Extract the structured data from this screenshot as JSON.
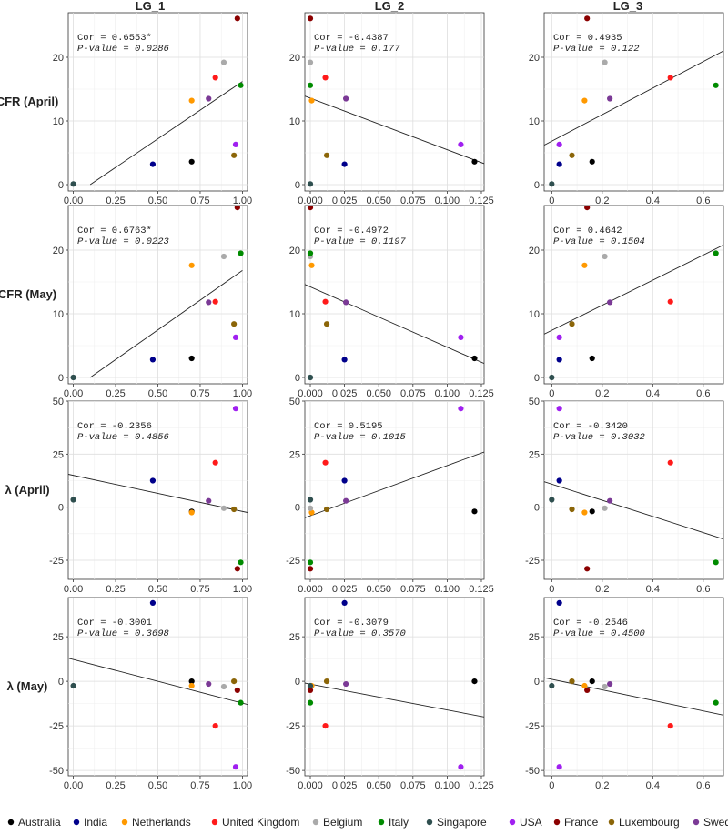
{
  "countries": [
    {
      "name": "Australia",
      "color": "#000000"
    },
    {
      "name": "India",
      "color": "#00008B"
    },
    {
      "name": "Netherlands",
      "color": "#FF9900"
    },
    {
      "name": "United Kingdom",
      "color": "#FF1A1A"
    },
    {
      "name": "Belgium",
      "color": "#AAAAAA"
    },
    {
      "name": "Italy",
      "color": "#008B00"
    },
    {
      "name": "Singapore",
      "color": "#2F4F4F"
    },
    {
      "name": "USA",
      "color": "#A020F0"
    },
    {
      "name": "France",
      "color": "#8B0000"
    },
    {
      "name": "Luxembourg",
      "color": "#8B6508"
    },
    {
      "name": "Sweden",
      "color": "#7B3A96"
    }
  ],
  "chart_data": {
    "type": "scatter",
    "columns": [
      "LG_1",
      "LG_2",
      "LG_3"
    ],
    "rows": [
      {
        "label": "CFR (April)",
        "ylim": [
          -1,
          27
        ],
        "yticks": [
          0,
          10,
          20
        ]
      },
      {
        "label": "CFR (May)",
        "ylim": [
          -1,
          27
        ],
        "yticks": [
          0,
          10,
          20
        ]
      },
      {
        "label": "λ (April)",
        "ylim": [
          -34,
          50
        ],
        "yticks": [
          -25,
          0,
          25,
          50
        ]
      },
      {
        "label": "λ (May)",
        "ylim": [
          -53,
          47
        ],
        "yticks": [
          -50,
          -25,
          0,
          25
        ]
      }
    ],
    "x_axes": [
      {
        "xlim": [
          -0.03,
          1.03
        ],
        "ticks": [
          0,
          0.25,
          0.5,
          0.75,
          1
        ],
        "tick_labels": [
          "0.00",
          "0.25",
          "0.50",
          "0.75",
          "1.00"
        ]
      },
      {
        "xlim": [
          -0.004,
          0.127
        ],
        "ticks": [
          0,
          0.025,
          0.05,
          0.075,
          0.1,
          0.125
        ],
        "tick_labels": [
          "0.000",
          "0.025",
          "0.050",
          "0.075",
          "0.100",
          "0.125"
        ]
      },
      {
        "xlim": [
          -0.03,
          0.68
        ],
        "ticks": [
          0,
          0.2,
          0.4,
          0.6
        ],
        "tick_labels": [
          "0",
          "0.2",
          "0.4",
          "0.6"
        ]
      }
    ],
    "x_values": [
      [
        0.7,
        0.47,
        0.7,
        0.84,
        0.89,
        0.99,
        0.0,
        0.96,
        0.97,
        0.95,
        0.8
      ],
      [
        0.12,
        0.025,
        0.001,
        0.011,
        0.0,
        0.0,
        0.0,
        0.11,
        0.0,
        0.012,
        0.026
      ],
      [
        0.16,
        0.03,
        0.13,
        0.47,
        0.21,
        0.65,
        0.0,
        0.03,
        0.14,
        0.08,
        0.23
      ]
    ],
    "y_values": [
      [
        3.6,
        3.2,
        13.2,
        16.8,
        19.2,
        15.6,
        0.1,
        6.3,
        26.1,
        4.6,
        13.5
      ],
      [
        3.0,
        2.8,
        17.6,
        11.9,
        19.0,
        19.5,
        0.0,
        6.3,
        26.7,
        8.4,
        11.8
      ],
      [
        -2,
        12.5,
        -2.5,
        21,
        -0.5,
        -26,
        3.5,
        46.5,
        -29,
        -1,
        3
      ],
      [
        0,
        44,
        -2.5,
        -25,
        -3,
        -12,
        -2.5,
        -48,
        -5,
        0,
        -1.5
      ]
    ],
    "panels": [
      {
        "row": 0,
        "col": 0,
        "cor": "Cor = 0.6553*",
        "pvalue": "P-value = 0.0286",
        "fit": [
          [
            0.1,
            0
          ],
          [
            1.0,
            16.2
          ]
        ]
      },
      {
        "row": 0,
        "col": 1,
        "cor": "Cor = -0.4387",
        "pvalue": "P-value = 0.177",
        "fit": [
          [
            -0.004,
            13.9
          ],
          [
            0.127,
            3.3
          ]
        ]
      },
      {
        "row": 0,
        "col": 2,
        "cor": "Cor = 0.4935",
        "pvalue": "P-value = 0.122",
        "fit": [
          [
            -0.03,
            6.2
          ],
          [
            0.68,
            21.0
          ]
        ]
      },
      {
        "row": 1,
        "col": 0,
        "cor": "Cor = 0.6763*",
        "pvalue": "P-value = 0.0223",
        "fit": [
          [
            0.1,
            0
          ],
          [
            1.0,
            16.8
          ]
        ]
      },
      {
        "row": 1,
        "col": 1,
        "cor": "Cor = -0.4972",
        "pvalue": "P-value = 0.1197",
        "fit": [
          [
            -0.004,
            14.6
          ],
          [
            0.127,
            2.2
          ]
        ]
      },
      {
        "row": 1,
        "col": 2,
        "cor": "Cor = 0.4642",
        "pvalue": "P-value = 0.1504",
        "fit": [
          [
            -0.03,
            6.8
          ],
          [
            0.68,
            20.8
          ]
        ]
      },
      {
        "row": 2,
        "col": 0,
        "cor": "Cor = -0.2356",
        "pvalue": "P-value = 0.4856",
        "fit": [
          [
            -0.03,
            15.5
          ],
          [
            1.03,
            -2.5
          ]
        ]
      },
      {
        "row": 2,
        "col": 1,
        "cor": "Cor = 0.5195",
        "pvalue": "P-value = 0.1015",
        "fit": [
          [
            -0.004,
            -5
          ],
          [
            0.127,
            26
          ]
        ]
      },
      {
        "row": 2,
        "col": 2,
        "cor": "Cor = -0.3420",
        "pvalue": "P-value = 0.3032",
        "fit": [
          [
            -0.03,
            12
          ],
          [
            0.68,
            -15
          ]
        ]
      },
      {
        "row": 3,
        "col": 0,
        "cor": "Cor = -0.3001",
        "pvalue": "P-value = 0.3698",
        "fit": [
          [
            -0.03,
            13
          ],
          [
            1.03,
            -13
          ]
        ]
      },
      {
        "row": 3,
        "col": 1,
        "cor": "Cor = -0.3079",
        "pvalue": "P-value = 0.3570",
        "fit": [
          [
            -0.004,
            -1
          ],
          [
            0.127,
            -20
          ]
        ]
      },
      {
        "row": 3,
        "col": 2,
        "cor": "Cor = -0.2546",
        "pvalue": "P-value = 0.4500",
        "fit": [
          [
            -0.03,
            2
          ],
          [
            0.68,
            -19
          ]
        ]
      }
    ],
    "legend_position": "bottom"
  }
}
